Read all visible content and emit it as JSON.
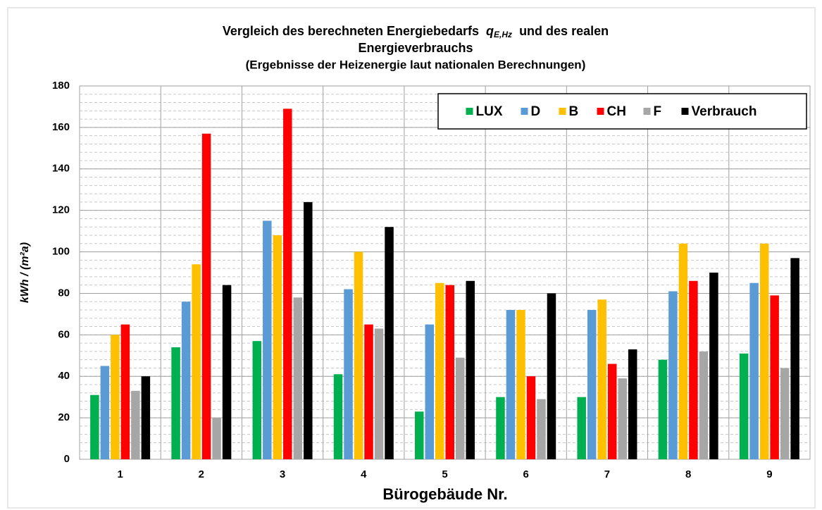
{
  "chart_data": {
    "type": "bar",
    "title": {
      "line1_start": "Vergleich des berechneten Energiebedarfs",
      "symbol": "q",
      "subscript": "E,Hz",
      "line1_end": "und des realen",
      "line2": "Energieverbrauchs"
    },
    "subtitle": "(Ergebnisse der Heizenergie laut nationalen Berechnungen)",
    "y_label": "kWh / (m²a)",
    "x_label": "Bürogebäude Nr.",
    "categories": [
      "1",
      "2",
      "3",
      "4",
      "5",
      "6",
      "7",
      "8",
      "9"
    ],
    "series": [
      {
        "name": "LUX",
        "color": "#00b050",
        "values": [
          31,
          54,
          57,
          41,
          23,
          30,
          30,
          48,
          51
        ]
      },
      {
        "name": "D",
        "color": "#5b9bd5",
        "values": [
          45,
          76,
          115,
          82,
          65,
          72,
          72,
          81,
          85
        ]
      },
      {
        "name": "B",
        "color": "#ffc000",
        "values": [
          60,
          94,
          108,
          100,
          85,
          72,
          77,
          104,
          104
        ]
      },
      {
        "name": "CH",
        "color": "#ff0000",
        "values": [
          65,
          157,
          169,
          65,
          84,
          40,
          46,
          86,
          79
        ]
      },
      {
        "name": "F",
        "color": "#a6a6a6",
        "values": [
          33,
          20,
          78,
          63,
          49,
          29,
          39,
          52,
          44
        ]
      },
      {
        "name": "Verbrauch",
        "color": "#000000",
        "values": [
          40,
          84,
          124,
          112,
          86,
          80,
          53,
          90,
          97
        ]
      }
    ],
    "ylim": [
      0,
      180
    ],
    "yticks": [
      0,
      20,
      40,
      60,
      80,
      100,
      120,
      140,
      160,
      180
    ],
    "grid": true,
    "minor_grid_step": 4,
    "legend": "top-right"
  }
}
